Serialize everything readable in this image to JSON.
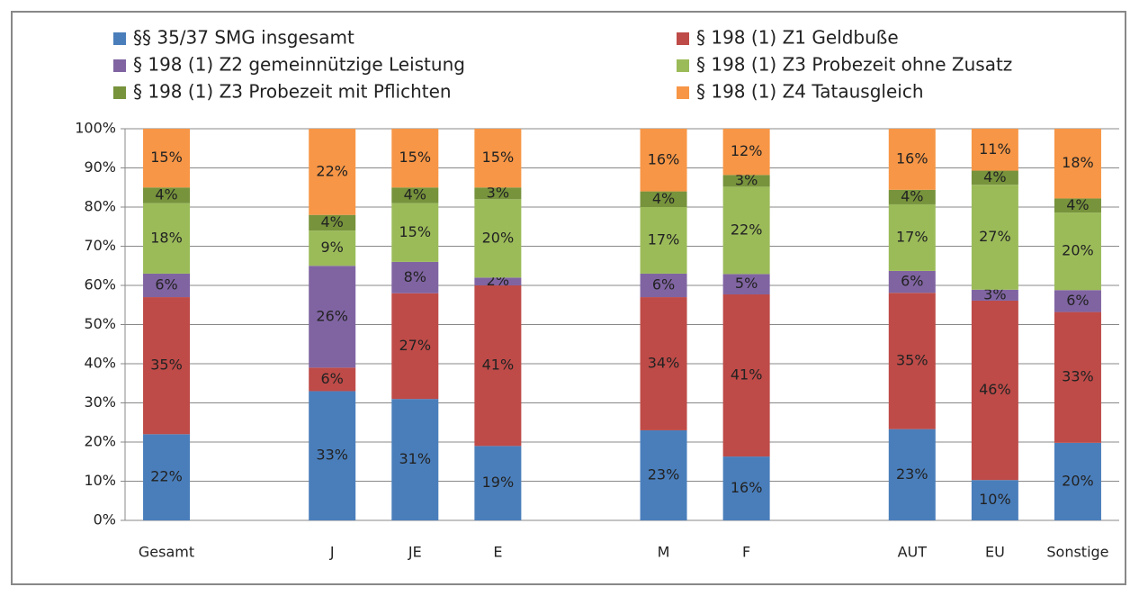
{
  "chart_data": {
    "type": "stacked_bar",
    "categories": [
      "Gesamt",
      null,
      "J",
      "JE",
      "E",
      null,
      "M",
      "F",
      null,
      "AUT",
      "EU",
      "Sonstige"
    ],
    "series": [
      {
        "name": "§§ 35/37 SMG insgesamt",
        "color": "#4a7ebb",
        "values": [
          22,
          null,
          33,
          31,
          19,
          null,
          23,
          16.3,
          null,
          23.3,
          10.3,
          19.8
        ],
        "value_labels": [
          "22%",
          null,
          "33%",
          "31%",
          "19%",
          null,
          "23%",
          "16%",
          null,
          "23%",
          "10%",
          "20%"
        ]
      },
      {
        "name": "§ 198 (1) Z1 Geldbuße",
        "color": "#be4b48",
        "values": [
          35,
          null,
          6,
          27,
          41,
          null,
          34,
          41.4,
          null,
          34.8,
          45.8,
          33.4
        ],
        "value_labels": [
          "35%",
          null,
          "6%",
          "27%",
          "41%",
          null,
          "34%",
          "41%",
          null,
          "35%",
          "46%",
          "33%"
        ]
      },
      {
        "name": "§ 198 (1) Z2 gemeinnützige Leistung",
        "color": "#8064a2",
        "values": [
          6,
          null,
          26,
          8,
          2,
          null,
          6,
          5.2,
          null,
          5.6,
          2.8,
          5.6
        ],
        "value_labels": [
          "6%",
          null,
          "26%",
          "8%",
          "2%",
          null,
          "6%",
          "5%",
          null,
          "6%",
          "3%",
          "6%"
        ]
      },
      {
        "name": "§ 198 (1) Z3 Probezeit ohne Zusatz",
        "color": "#9bbb59",
        "values": [
          18,
          null,
          9,
          15,
          20,
          null,
          17,
          22.3,
          null,
          17,
          26.8,
          19.8
        ],
        "value_labels": [
          "18%",
          null,
          "9%",
          "15%",
          "20%",
          null,
          "17%",
          "22%",
          null,
          "17%",
          "27%",
          "20%"
        ]
      },
      {
        "name": "§ 198 (1) Z3 Probezeit mit Pflichten",
        "color": "#77933c",
        "values": [
          4,
          null,
          4,
          4,
          3,
          null,
          4,
          3,
          null,
          3.7,
          3.6,
          3.6
        ],
        "value_labels": [
          "4%",
          null,
          "4%",
          "4%",
          "3%",
          null,
          "4%",
          "3%",
          null,
          "4%",
          "4%",
          "4%"
        ]
      },
      {
        "name": "§ 198 (1) Z4 Tatausgleich",
        "color": "#f79646",
        "values": [
          15,
          null,
          22,
          15,
          15,
          null,
          16,
          11.8,
          null,
          15.6,
          10.7,
          17.8
        ],
        "value_labels": [
          "15%",
          null,
          "22%",
          "15%",
          "15%",
          null,
          "16%",
          "12%",
          null,
          "16%",
          "11%",
          "18%"
        ]
      }
    ],
    "ylim": [
      0,
      100
    ],
    "yticks": [
      {
        "value": 0,
        "label": "0%"
      },
      {
        "value": 10,
        "label": "10%"
      },
      {
        "value": 20,
        "label": "20%"
      },
      {
        "value": 30,
        "label": "30%"
      },
      {
        "value": 40,
        "label": "40%"
      },
      {
        "value": 50,
        "label": "50%"
      },
      {
        "value": 60,
        "label": "60%"
      },
      {
        "value": 70,
        "label": "70%"
      },
      {
        "value": 80,
        "label": "80%"
      },
      {
        "value": 90,
        "label": "90%"
      },
      {
        "value": 100,
        "label": "100%"
      }
    ],
    "grid": true
  }
}
